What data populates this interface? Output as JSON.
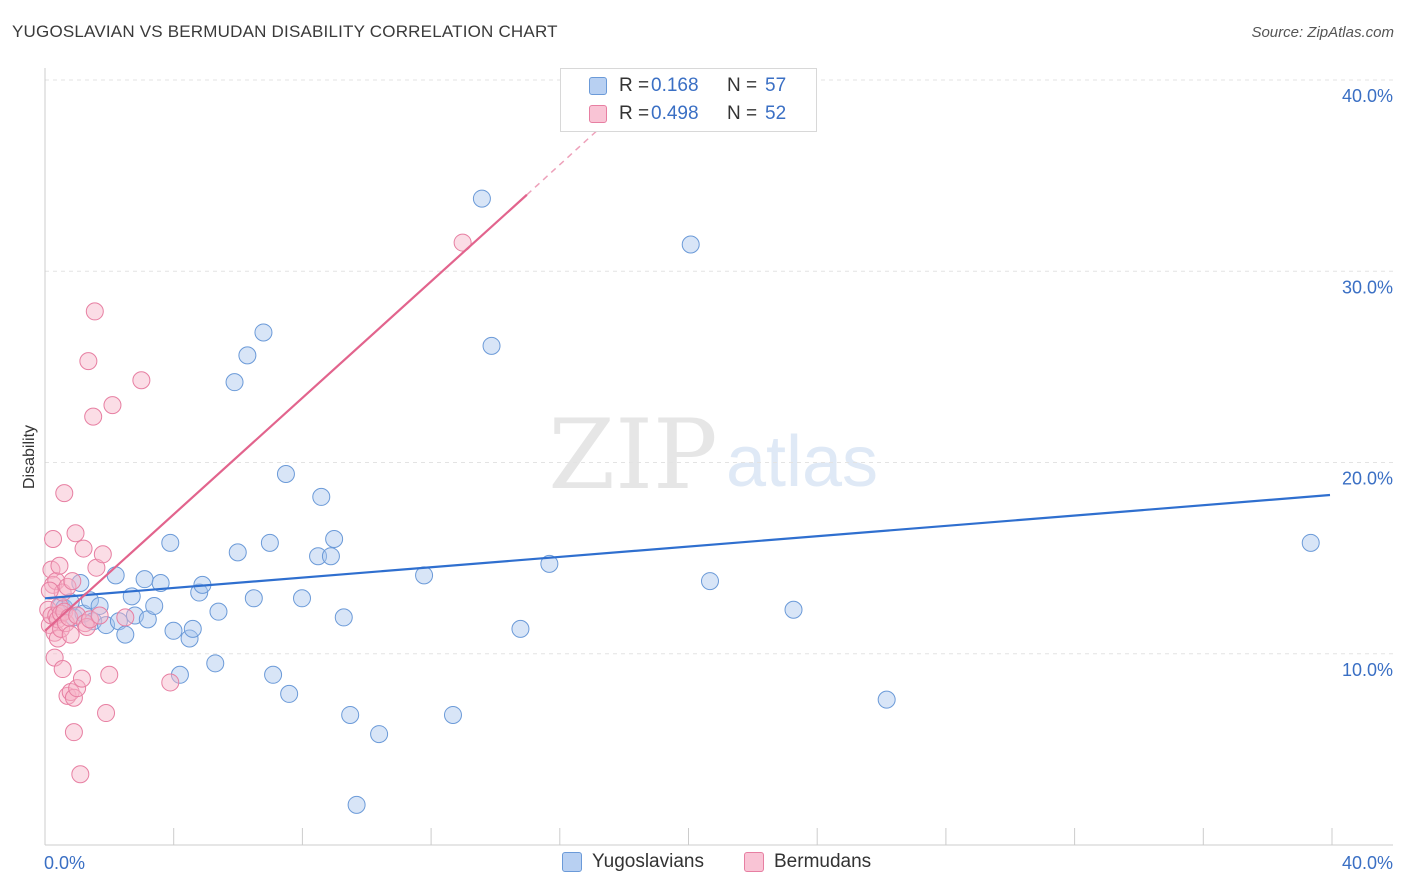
{
  "header": {
    "title": "YUGOSLAVIAN VS BERMUDAN DISABILITY CORRELATION CHART",
    "source": "Source: ZipAtlas.com"
  },
  "watermark": {
    "zip": "ZIP",
    "atlas": "atlas"
  },
  "legend": {
    "rows": [
      {
        "r_label": "R =",
        "r_value": "0.168",
        "n_label": "N =",
        "n_value": "57"
      },
      {
        "r_label": "R =",
        "r_value": "0.498",
        "n_label": "N =",
        "n_value": "52"
      }
    ]
  },
  "bottom_legend": {
    "series1": "Yugoslavians",
    "series2": "Bermudans"
  },
  "colors": {
    "blue_fill": "#a9c6ee",
    "blue_stroke": "#6b9ad8",
    "blue_line": "#2f6fcf",
    "pink_fill": "#f6b3c8",
    "pink_stroke": "#e77fa2",
    "pink_line": "#e2648d",
    "grid": "#e3e3e3",
    "tick_text": "#3a6fc4"
  },
  "chart_data": {
    "type": "scatter",
    "title": "YUGOSLAVIAN VS BERMUDAN DISABILITY CORRELATION CHART",
    "xlabel": "",
    "ylabel": "Disability",
    "xlim": [
      0,
      40
    ],
    "ylim": [
      0,
      40
    ],
    "x_tick_labels": [
      "0.0%",
      "40.0%"
    ],
    "y_ticks": [
      10,
      20,
      30,
      40
    ],
    "y_tick_labels": [
      "10.0%",
      "20.0%",
      "30.0%",
      "40.0%"
    ],
    "grid": true,
    "series": [
      {
        "name": "Yugoslavians",
        "R": 0.168,
        "N": 57,
        "trend": {
          "x": [
            0,
            40
          ],
          "y": [
            12.9,
            18.3
          ]
        },
        "points": [
          [
            0.5,
            12.5
          ],
          [
            0.6,
            12.4
          ],
          [
            0.8,
            12.7
          ],
          [
            0.9,
            11.9
          ],
          [
            1.1,
            13.7
          ],
          [
            1.2,
            12.1
          ],
          [
            1.4,
            12.8
          ],
          [
            1.5,
            11.7
          ],
          [
            1.7,
            12.5
          ],
          [
            1.9,
            11.5
          ],
          [
            2.2,
            14.1
          ],
          [
            2.3,
            11.7
          ],
          [
            2.5,
            11.0
          ],
          [
            2.7,
            13.0
          ],
          [
            2.8,
            12.0
          ],
          [
            3.1,
            13.9
          ],
          [
            3.2,
            11.8
          ],
          [
            3.4,
            12.5
          ],
          [
            3.6,
            13.7
          ],
          [
            3.9,
            15.8
          ],
          [
            4.0,
            11.2
          ],
          [
            4.2,
            8.9
          ],
          [
            4.5,
            10.8
          ],
          [
            4.6,
            11.3
          ],
          [
            4.8,
            13.2
          ],
          [
            4.9,
            13.6
          ],
          [
            5.3,
            9.5
          ],
          [
            5.4,
            12.2
          ],
          [
            5.9,
            24.2
          ],
          [
            6.0,
            15.3
          ],
          [
            6.3,
            25.6
          ],
          [
            6.5,
            12.9
          ],
          [
            6.8,
            26.8
          ],
          [
            7.0,
            15.8
          ],
          [
            7.1,
            8.9
          ],
          [
            7.5,
            19.4
          ],
          [
            7.6,
            7.9
          ],
          [
            8.0,
            12.9
          ],
          [
            8.5,
            15.1
          ],
          [
            8.6,
            18.2
          ],
          [
            8.9,
            15.1
          ],
          [
            9.0,
            16.0
          ],
          [
            9.3,
            11.9
          ],
          [
            9.5,
            6.8
          ],
          [
            9.7,
            2.1
          ],
          [
            10.4,
            5.8
          ],
          [
            11.8,
            14.1
          ],
          [
            12.7,
            6.8
          ],
          [
            13.6,
            33.8
          ],
          [
            13.9,
            26.1
          ],
          [
            14.8,
            11.3
          ],
          [
            15.7,
            14.7
          ],
          [
            20.1,
            31.4
          ],
          [
            20.7,
            13.8
          ],
          [
            23.3,
            12.3
          ],
          [
            26.2,
            7.6
          ],
          [
            39.4,
            15.8
          ]
        ]
      },
      {
        "name": "Bermudans",
        "R": 0.498,
        "N": 52,
        "trend": {
          "x": [
            0,
            15.0
          ],
          "y": [
            11.2,
            34.0
          ],
          "dashed_extension": {
            "x": [
              15.0,
              17.8
            ],
            "y": [
              34.0,
              38.3
            ]
          }
        },
        "points": [
          [
            0.1,
            12.3
          ],
          [
            0.15,
            11.5
          ],
          [
            0.2,
            12.0
          ],
          [
            0.2,
            14.4
          ],
          [
            0.25,
            13.6
          ],
          [
            0.25,
            16.0
          ],
          [
            0.3,
            11.1
          ],
          [
            0.3,
            9.8
          ],
          [
            0.35,
            12.0
          ],
          [
            0.35,
            13.8
          ],
          [
            0.4,
            11.8
          ],
          [
            0.4,
            10.8
          ],
          [
            0.45,
            12.5
          ],
          [
            0.45,
            14.6
          ],
          [
            0.5,
            12.1
          ],
          [
            0.5,
            11.3
          ],
          [
            0.55,
            13.2
          ],
          [
            0.55,
            9.2
          ],
          [
            0.6,
            18.4
          ],
          [
            0.6,
            12.2
          ],
          [
            0.65,
            11.6
          ],
          [
            0.7,
            13.5
          ],
          [
            0.7,
            7.8
          ],
          [
            0.75,
            11.9
          ],
          [
            0.8,
            11.0
          ],
          [
            0.8,
            8.0
          ],
          [
            0.85,
            13.8
          ],
          [
            0.9,
            7.7
          ],
          [
            0.9,
            5.9
          ],
          [
            0.95,
            16.3
          ],
          [
            1.0,
            8.2
          ],
          [
            1.0,
            12.0
          ],
          [
            1.1,
            3.7
          ],
          [
            1.15,
            8.7
          ],
          [
            1.2,
            15.5
          ],
          [
            1.25,
            11.6
          ],
          [
            1.3,
            11.4
          ],
          [
            1.35,
            25.3
          ],
          [
            1.4,
            11.8
          ],
          [
            1.5,
            22.4
          ],
          [
            1.55,
            27.9
          ],
          [
            1.6,
            14.5
          ],
          [
            1.7,
            12.0
          ],
          [
            1.8,
            15.2
          ],
          [
            1.9,
            6.9
          ],
          [
            2.0,
            8.9
          ],
          [
            2.1,
            23.0
          ],
          [
            2.5,
            11.9
          ],
          [
            3.0,
            24.3
          ],
          [
            3.9,
            8.5
          ],
          [
            13.0,
            31.5
          ],
          [
            0.15,
            13.3
          ]
        ]
      }
    ]
  }
}
